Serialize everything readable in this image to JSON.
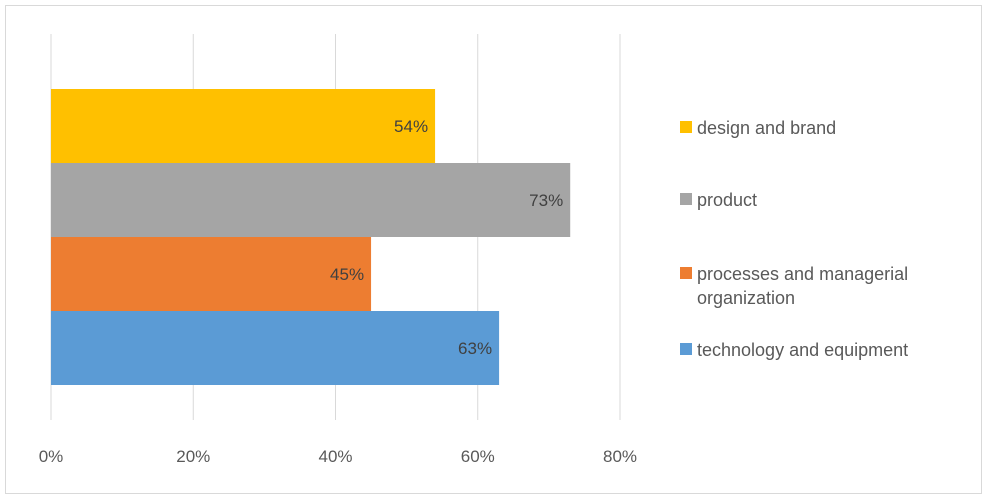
{
  "chart_data": {
    "type": "bar",
    "orientation": "horizontal",
    "categories": [
      "technology and equipment",
      "processes and managerial organization",
      "product",
      "design and brand"
    ],
    "values": [
      63,
      45,
      73,
      54
    ],
    "data_labels": [
      "63%",
      "45%",
      "73%",
      "54%"
    ],
    "colors": [
      "#5b9bd5",
      "#ed7d31",
      "#a5a5a5",
      "#ffc000"
    ],
    "xlim": [
      0,
      80
    ],
    "x_ticks": [
      "0%",
      "20%",
      "40%",
      "60%",
      "80%"
    ],
    "grid": true,
    "legend_position": "right",
    "legend": [
      {
        "label": "design and brand",
        "color": "#ffc000"
      },
      {
        "label": "product",
        "color": "#a5a5a5"
      },
      {
        "label": "processes and managerial organization",
        "color": "#ed7d31"
      },
      {
        "label": "technology and equipment",
        "color": "#5b9bd5"
      }
    ]
  }
}
